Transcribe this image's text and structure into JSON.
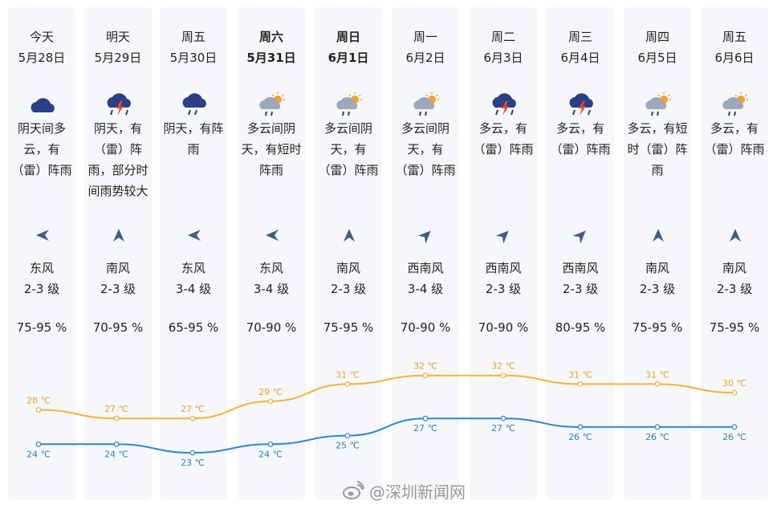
{
  "days": [
    {
      "day": "今天",
      "date": "5月28日",
      "bold": false,
      "icon": "cloudy-icon",
      "desc": [
        "阴天间多",
        "云，有",
        "（雷）阵雨"
      ],
      "wind_dir": "东风",
      "wind_icon": "arrow-east-icon",
      "wind_level": "2-3 级",
      "humidity": "75-95 %"
    },
    {
      "day": "明天",
      "date": "5月29日",
      "bold": false,
      "icon": "thunderstorm-icon",
      "desc": [
        "阴天，有",
        "（雷）阵",
        "雨，部分时",
        "间雨势较大"
      ],
      "wind_dir": "南风",
      "wind_icon": "arrow-south-icon",
      "wind_level": "2-3 级",
      "humidity": "70-95 %"
    },
    {
      "day": "周五",
      "date": "5月30日",
      "bold": false,
      "icon": "rain-icon",
      "desc": [
        "阴天，有阵",
        "雨"
      ],
      "wind_dir": "东风",
      "wind_icon": "arrow-east-icon",
      "wind_level": "3-4 级",
      "humidity": "65-95 %"
    },
    {
      "day": "周六",
      "date": "5月31日",
      "bold": true,
      "icon": "partly-cloudy-rain-icon",
      "desc": [
        "多云间阴",
        "天，有短时",
        "阵雨"
      ],
      "wind_dir": "东风",
      "wind_icon": "arrow-east-icon",
      "wind_level": "3-4 级",
      "humidity": "70-90 %"
    },
    {
      "day": "周日",
      "date": "6月1日",
      "bold": true,
      "icon": "partly-cloudy-rain-icon",
      "desc": [
        "多云间阴",
        "天，有",
        "（雷）阵雨"
      ],
      "wind_dir": "南风",
      "wind_icon": "arrow-south-icon",
      "wind_level": "2-3 级",
      "humidity": "75-95 %"
    },
    {
      "day": "周一",
      "date": "6月2日",
      "bold": false,
      "icon": "partly-cloudy-rain-icon",
      "desc": [
        "多云间阴",
        "天，有",
        "（雷）阵雨"
      ],
      "wind_dir": "西南风",
      "wind_icon": "arrow-southwest-icon",
      "wind_level": "3-4 级",
      "humidity": "70-90 %"
    },
    {
      "day": "周二",
      "date": "6月3日",
      "bold": false,
      "icon": "thunderstorm-icon",
      "desc": [
        "多云，有",
        "（雷）阵雨"
      ],
      "wind_dir": "西南风",
      "wind_icon": "arrow-southwest-icon",
      "wind_level": "2-3 级",
      "humidity": "70-90 %"
    },
    {
      "day": "周三",
      "date": "6月4日",
      "bold": false,
      "icon": "thunderstorm-icon",
      "desc": [
        "多云，有",
        "（雷）阵雨"
      ],
      "wind_dir": "西南风",
      "wind_icon": "arrow-southwest-icon",
      "wind_level": "2-3 级",
      "humidity": "80-95 %"
    },
    {
      "day": "周四",
      "date": "6月5日",
      "bold": false,
      "icon": "partly-cloudy-rain-icon",
      "desc": [
        "多云，有短",
        "时（雷）阵",
        "雨"
      ],
      "wind_dir": "南风",
      "wind_icon": "arrow-south-icon",
      "wind_level": "2-3 级",
      "humidity": "75-95 %"
    },
    {
      "day": "周五",
      "date": "6月6日",
      "bold": false,
      "icon": "partly-cloudy-rain-icon",
      "desc": [
        "多云，有",
        "（雷）阵雨"
      ],
      "wind_dir": "南风",
      "wind_icon": "arrow-south-icon",
      "wind_level": "2-3 级",
      "humidity": "75-95 %"
    }
  ],
  "chart_data": {
    "type": "line",
    "categories": [
      "5月28日",
      "5月29日",
      "5月30日",
      "5月31日",
      "6月1日",
      "6月2日",
      "6月3日",
      "6月4日",
      "6月5日",
      "6月6日"
    ],
    "unit": "℃",
    "series": [
      {
        "values": [
          28,
          27,
          27,
          29,
          31,
          32,
          32,
          31,
          31,
          30
        ],
        "color": "#f0b23c"
      },
      {
        "values": [
          24,
          24,
          23,
          24,
          25,
          27,
          27,
          26,
          26,
          26
        ],
        "color": "#2f86d0"
      }
    ],
    "ylim": [
      23,
      32
    ],
    "grid": false,
    "legend": "none"
  },
  "watermark": "@深圳新闻网"
}
